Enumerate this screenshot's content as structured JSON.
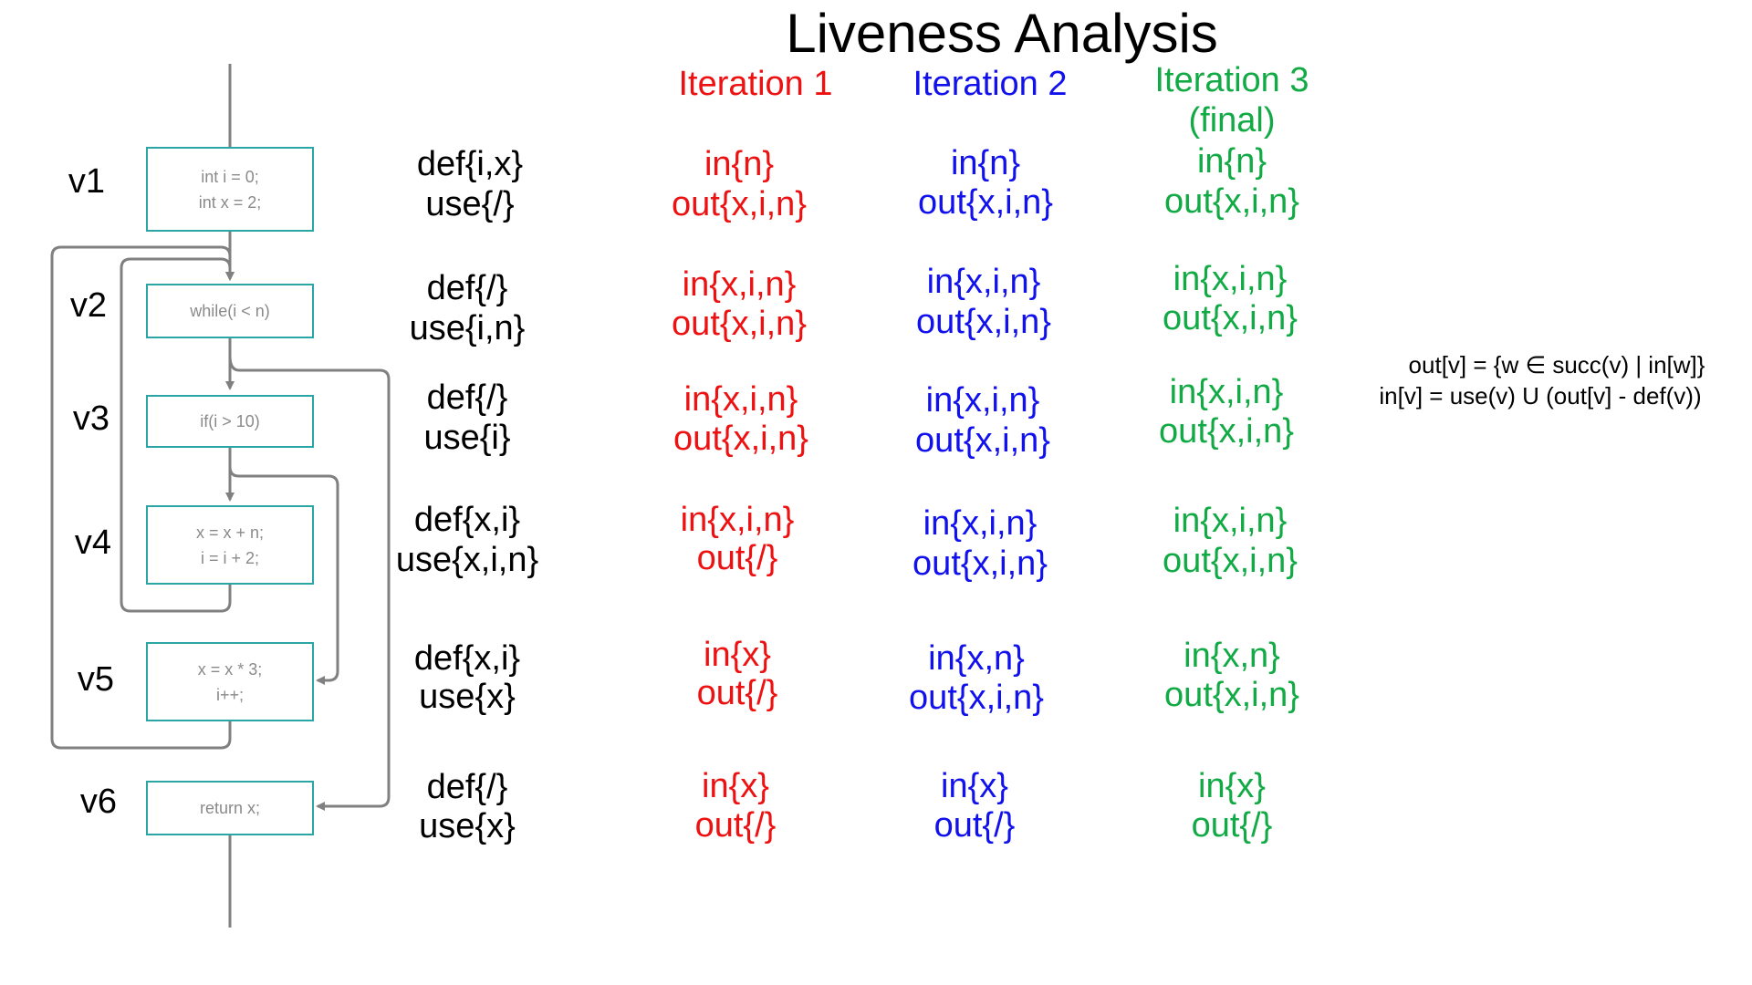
{
  "title": "Liveness Analysis",
  "iterations": [
    {
      "label": "Iteration 1",
      "color": "#ee1111"
    },
    {
      "label": "Iteration 2",
      "color": "#1111ee"
    },
    {
      "label": "Iteration 3",
      "sub": "(final)",
      "color": "#11aa44"
    }
  ],
  "nodes": [
    {
      "id": "v1",
      "code": [
        "int i = 0;",
        "int x = 2;"
      ],
      "def": "def{i,x}",
      "use": "use{/}",
      "it1": {
        "in": "in{n}",
        "out": "out{x,i,n}"
      },
      "it2": {
        "in": "in{n}",
        "out": "out{x,i,n}"
      },
      "it3": {
        "in": "in{n}",
        "out": "out{x,i,n}"
      }
    },
    {
      "id": "v2",
      "code": [
        "while(i < n)"
      ],
      "def": "def{/}",
      "use": "use{i,n}",
      "it1": {
        "in": "in{x,i,n}",
        "out": "out{x,i,n}"
      },
      "it2": {
        "in": "in{x,i,n}",
        "out": "out{x,i,n}"
      },
      "it3": {
        "in": "in{x,i,n}",
        "out": "out{x,i,n}"
      }
    },
    {
      "id": "v3",
      "code": [
        "if(i > 10)"
      ],
      "def": "def{/}",
      "use": "use{i}",
      "it1": {
        "in": "in{x,i,n}",
        "out": "out{x,i,n}"
      },
      "it2": {
        "in": "in{x,i,n}",
        "out": "out{x,i,n}"
      },
      "it3": {
        "in": "in{x,i,n}",
        "out": "out{x,i,n}"
      }
    },
    {
      "id": "v4",
      "code": [
        "x = x + n;",
        "i = i + 2;"
      ],
      "def": "def{x,i}",
      "use": "use{x,i,n}",
      "it1": {
        "in": "in{x,i,n}",
        "out": "out{/}"
      },
      "it2": {
        "in": "in{x,i,n}",
        "out": "out{x,i,n}"
      },
      "it3": {
        "in": "in{x,i,n}",
        "out": "out{x,i,n}"
      }
    },
    {
      "id": "v5",
      "code": [
        "x = x * 3;",
        "i++;"
      ],
      "def": "def{x,i}",
      "use": "use{x}",
      "it1": {
        "in": "in{x}",
        "out": "out{/}"
      },
      "it2": {
        "in": "in{x,n}",
        "out": "out{x,i,n}"
      },
      "it3": {
        "in": "in{x,n}",
        "out": "out{x,i,n}"
      }
    },
    {
      "id": "v6",
      "code": [
        "return x;"
      ],
      "def": "def{/}",
      "use": "use{x}",
      "it1": {
        "in": "in{x}",
        "out": "out{/}"
      },
      "it2": {
        "in": "in{x}",
        "out": "out{/}"
      },
      "it3": {
        "in": "in{x}",
        "out": "out{/}"
      }
    }
  ],
  "formulas": [
    "out[v] = {w ∈ succ(v) | in[w]}",
    "in[v] = use(v) U (out[v] - def(v))"
  ],
  "colors": {
    "node_border": "#2aa7a5",
    "edge": "#808080"
  }
}
